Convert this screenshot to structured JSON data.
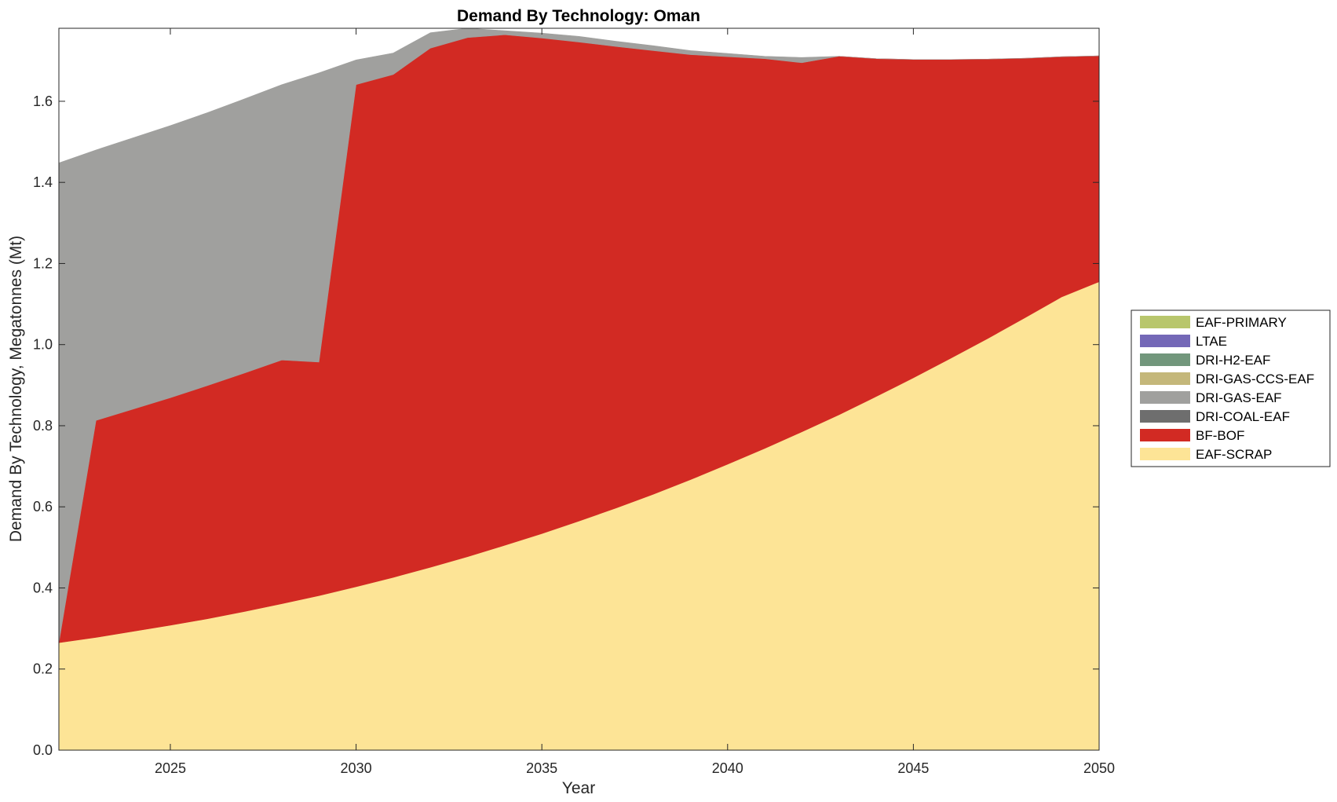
{
  "chart_data": {
    "type": "area",
    "stacked": true,
    "title": "Demand By Technology: Oman",
    "xlabel": "Year",
    "ylabel": "Demand By Technology, Megatonnes (Mt)",
    "xlim": [
      2022,
      2050
    ],
    "ylim": [
      0,
      1.78
    ],
    "xticks": [
      2025,
      2030,
      2035,
      2040,
      2045,
      2050
    ],
    "xtick_labels": [
      "2025",
      "2030",
      "2035",
      "2040",
      "2045",
      "2050"
    ],
    "yticks": [
      0,
      0.2,
      0.4,
      0.6,
      0.8,
      1.0,
      1.2,
      1.4,
      1.6
    ],
    "ytick_labels": [
      "0.0",
      "0.2",
      "0.4",
      "0.6",
      "0.8",
      "1.0",
      "1.2",
      "1.4",
      "1.6"
    ],
    "grid": false,
    "legend_position": "right",
    "x": [
      2022,
      2023,
      2024,
      2025,
      2026,
      2027,
      2028,
      2029,
      2030,
      2031,
      2032,
      2033,
      2034,
      2035,
      2036,
      2037,
      2038,
      2039,
      2040,
      2041,
      2042,
      2043,
      2044,
      2045,
      2046,
      2047,
      2048,
      2049,
      2050
    ],
    "series": [
      {
        "name": "EAF-SCRAP",
        "color": "#FDE496",
        "values": [
          0.265,
          0.278,
          0.293,
          0.308,
          0.324,
          0.342,
          0.361,
          0.381,
          0.403,
          0.426,
          0.451,
          0.477,
          0.505,
          0.534,
          0.565,
          0.597,
          0.631,
          0.667,
          0.705,
          0.744,
          0.785,
          0.827,
          0.872,
          0.918,
          0.966,
          1.015,
          1.066,
          1.118,
          1.155
        ]
      },
      {
        "name": "BF-BOF",
        "color": "#D22A23",
        "values": [
          0.0,
          0.535,
          0.548,
          0.561,
          0.575,
          0.588,
          0.601,
          0.576,
          1.238,
          1.24,
          1.28,
          1.28,
          1.259,
          1.222,
          1.181,
          1.138,
          1.094,
          1.048,
          1.005,
          0.961,
          0.91,
          0.884,
          0.833,
          0.785,
          0.737,
          0.689,
          0.64,
          0.592,
          0.557
        ]
      },
      {
        "name": "DRI-COAL-EAF",
        "color": "#6E6E6E",
        "values": [
          0,
          0,
          0,
          0,
          0,
          0,
          0,
          0,
          0,
          0,
          0,
          0,
          0,
          0,
          0,
          0,
          0,
          0,
          0,
          0,
          0,
          0,
          0,
          0,
          0,
          0,
          0,
          0,
          0
        ]
      },
      {
        "name": "DRI-GAS-EAF",
        "color": "#A0A09E",
        "values": [
          1.183,
          0.667,
          0.669,
          0.671,
          0.673,
          0.676,
          0.679,
          0.713,
          0.061,
          0.053,
          0.038,
          0.023,
          0.01,
          0.012,
          0.014,
          0.013,
          0.012,
          0.01,
          0.008,
          0.006,
          0.013,
          0.0,
          0.0,
          0.0,
          0.0,
          0.0,
          0.0,
          0.0,
          0.0
        ]
      },
      {
        "name": "DRI-GAS-CCS-EAF",
        "color": "#C4B77A",
        "values": [
          0,
          0,
          0,
          0,
          0,
          0,
          0,
          0,
          0,
          0,
          0,
          0,
          0,
          0,
          0,
          0,
          0,
          0,
          0,
          0,
          0,
          0,
          0,
          0,
          0,
          0,
          0,
          0,
          0
        ]
      },
      {
        "name": "DRI-H2-EAF",
        "color": "#72977C",
        "values": [
          0,
          0,
          0,
          0,
          0,
          0,
          0,
          0,
          0,
          0,
          0,
          0,
          0,
          0,
          0,
          0,
          0,
          0,
          0,
          0,
          0,
          0,
          0,
          0,
          0,
          0,
          0,
          0,
          0
        ]
      },
      {
        "name": "LTAE",
        "color": "#7468B7",
        "values": [
          0,
          0,
          0,
          0,
          0,
          0,
          0,
          0,
          0,
          0,
          0,
          0,
          0,
          0,
          0,
          0,
          0,
          0,
          0,
          0,
          0,
          0,
          0,
          0,
          0,
          0,
          0,
          0,
          0
        ]
      },
      {
        "name": "EAF-PRIMARY",
        "color": "#B8C66C",
        "values": [
          0,
          0,
          0,
          0,
          0,
          0,
          0,
          0,
          0,
          0,
          0,
          0,
          0,
          0,
          0,
          0,
          0,
          0,
          0,
          0,
          0,
          0,
          0,
          0,
          0,
          0,
          0,
          0,
          0
        ]
      }
    ],
    "legend_order": [
      "EAF-PRIMARY",
      "LTAE",
      "DRI-H2-EAF",
      "DRI-GAS-CCS-EAF",
      "DRI-GAS-EAF",
      "DRI-COAL-EAF",
      "BF-BOF",
      "EAF-SCRAP"
    ]
  }
}
